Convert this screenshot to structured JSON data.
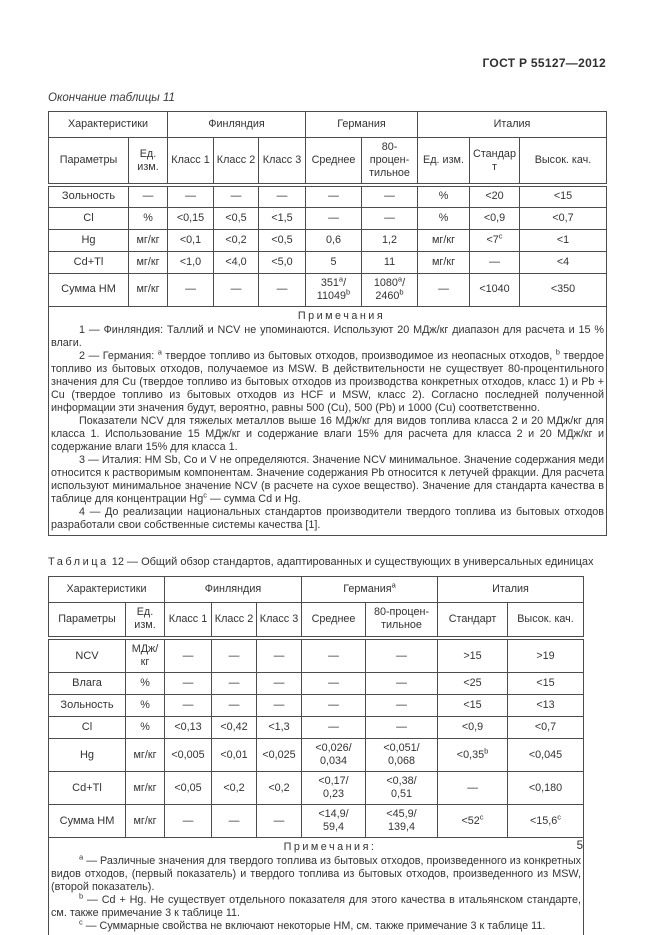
{
  "colors": {
    "text": "#333333",
    "border": "#4d4d4d",
    "background": "#ffffff"
  },
  "header": {
    "title": "ГОСТ Р 55127—2012"
  },
  "footer": {
    "page_number": "5"
  },
  "table11": {
    "caption": "Окончание таблицы 11",
    "header_row1": [
      {
        "label": "Характеристики",
        "colspan": 2
      },
      {
        "label": "Финляндия",
        "colspan": 3
      },
      {
        "label": "Германия",
        "colspan": 2
      },
      {
        "label": "Италия",
        "colspan": 3
      }
    ],
    "header_row2": [
      "Параметры",
      "Ед.\nизм.",
      "Класс 1",
      "Класс 2",
      "Класс 3",
      "Среднее",
      "80-процен-\nтильное",
      "Ед. изм.",
      "Стандарт",
      "Высок. кач."
    ],
    "rows": [
      [
        "Зольность",
        "—",
        "—",
        "—",
        "—",
        "—",
        "—",
        "%",
        "<20",
        "<15"
      ],
      [
        "Cl",
        "%",
        "<0,15",
        "<0,5",
        "<1,5",
        "—",
        "—",
        "%",
        "<0,9",
        "<0,7"
      ],
      [
        "Hg",
        "мг/кг",
        "<0,1",
        "<0,2",
        "<0,5",
        "0,6",
        "1,2",
        "мг/кг",
        "<7^c",
        "<1"
      ],
      [
        "Cd+Tl",
        "мг/кг",
        "<1,0",
        "<4,0",
        "<5,0",
        "5",
        "11",
        "мг/кг",
        "—",
        "<4"
      ],
      [
        "Сумма НМ",
        "мг/кг",
        "—",
        "—",
        "—",
        "351^a/\n11049^b",
        "1080^a/\n2460^b",
        "—",
        "<1040",
        "<350"
      ]
    ],
    "notes_title": "Примечания",
    "notes": [
      "1 — Финляндия: Таллий и NCV не упоминаются. Используют 20 МДж/кг диапазон для расчета и 15 % влаги.",
      "2 — Германия: ^a твердое топливо из бытовых отходов, производимое из неопасных отходов, ^b твердое топливо из бытовых отходов, получаемое из MSW. В действительности не существует 80-процентильного значения для Cu (твердое топливо из бытовых отходов из производства конкретных отходов, класс 1) и Pb + Cu (твердое топливо из бытовых отходов из HCF и MSW, класс 2). Согласно последней полученной информации эти значения будут, вероятно, равны 500 (Cu), 500 (Pb) и 1000 (Cu) соответственно.",
      "Показатели NCV для тяжелых металлов выше 16 МДж/кг для видов топлива класса 2 и 20 МДж/кг для класса 1. Использование 15 МДж/кг и содержание влаги 15% для расчета для класса 2 и 20 МДж/кг и содержание влаги 15% для класса 1.",
      "3 — Италия: HM Sb, Co и V не определяются. Значение NCV минимальное. Значение содержания меди относится к растворимым компонентам. Значение содержания Pb относится к летучей фракции. Для расчета используют минимальное значение NCV (в расчете на сухое вещество). Значение для стандарта качества в таблице для концентрации Hg^c — сумма Cd и Hg.",
      "4 — До реализации национальных стандартов производители твердого топлива из бытовых отходов разработали свои собственные системы качества [1]."
    ]
  },
  "table12": {
    "caption_word": "Таблица",
    "caption_num": "12",
    "caption_rest": "— Общий обзор стандартов, адаптированных и существующих в универсальных единицах",
    "header_row1": [
      {
        "label": "Характеристики",
        "colspan": 2
      },
      {
        "label": "Финляндия",
        "colspan": 3
      },
      {
        "label": "Германия^a",
        "colspan": 2
      },
      {
        "label": "Италия",
        "colspan": 2
      }
    ],
    "header_row2": [
      "Параметры",
      "Ед. изм.",
      "Класс 1",
      "Класс 2",
      "Класс 3",
      "Среднее",
      "80-процен-\nтильное",
      "Стандарт",
      "Высок. кач."
    ],
    "rows": [
      [
        "NCV",
        "МДж/кг",
        "—",
        "—",
        "—",
        "—",
        "—",
        ">15",
        ">19"
      ],
      [
        "Влага",
        "%",
        "—",
        "—",
        "—",
        "—",
        "—",
        "<25",
        "<15"
      ],
      [
        "Зольность",
        "%",
        "—",
        "—",
        "—",
        "—",
        "—",
        "<15",
        "<13"
      ],
      [
        "Cl",
        "%",
        "<0,13",
        "<0,42",
        "<1,3",
        "—",
        "—",
        "<0,9",
        "<0,7"
      ],
      [
        "Hg",
        "мг/кг",
        "<0,005",
        "<0,01",
        "<0,025",
        "<0,026/\n0,034",
        "<0,051/\n0,068",
        "<0,35^b",
        "<0,045"
      ],
      [
        "Cd+Tl",
        "мг/кг",
        "<0,05",
        "<0,2",
        "<0,2",
        "<0,17/\n0,23",
        "<0,38/\n0,51",
        "—",
        "<0,180"
      ],
      [
        "Сумма НМ",
        "мг/кг",
        "—",
        "—",
        "—",
        "<14,9/\n59,4",
        "<45,9/\n139,4",
        "<52^c",
        "<15,6^c"
      ]
    ],
    "notes_title": "Примечания:",
    "notes": [
      "^a — Различные значения для твердого топлива из бытовых отходов, произведенного из конкретных видов отходов, (первый показатель) и твердого топлива из бытовых отходов, произведенного из MSW, (второй показатель).",
      "^b — Cd + Hg. Не существует отдельного показателя для этого качества в итальянском стандарте, см. также примечание 3 к таблице 11.",
      "^c — Суммарные свойства не включают некоторые НМ, см. также примечание 3 к таблице 11."
    ]
  }
}
